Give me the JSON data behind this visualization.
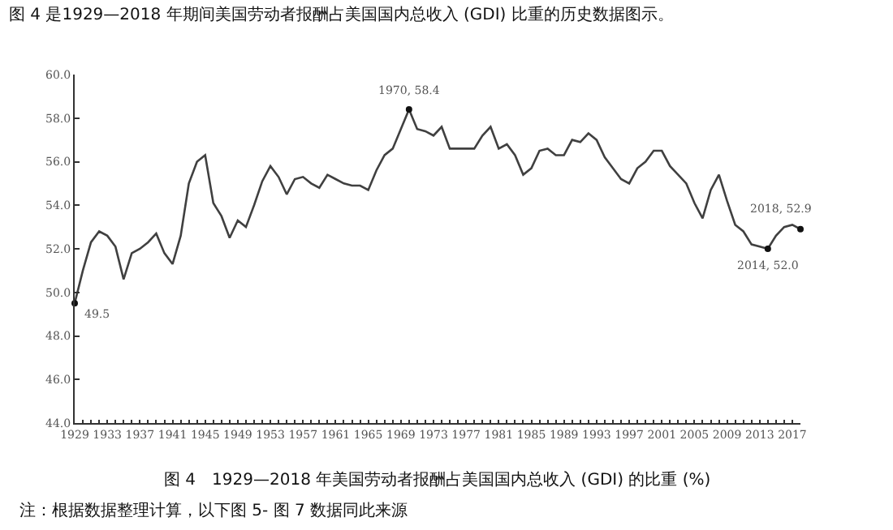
{
  "chart_data": {
    "type": "line",
    "title": "图 4 是1929—2018 年期间美国劳动者报酬占美国国内总收入 (GDI) 比重的历史数据图示。",
    "x": [
      1929,
      1930,
      1931,
      1932,
      1933,
      1934,
      1935,
      1936,
      1937,
      1938,
      1939,
      1940,
      1941,
      1942,
      1943,
      1944,
      1945,
      1946,
      1947,
      1948,
      1949,
      1950,
      1951,
      1952,
      1953,
      1954,
      1955,
      1956,
      1957,
      1958,
      1959,
      1960,
      1961,
      1962,
      1963,
      1964,
      1965,
      1966,
      1967,
      1968,
      1969,
      1970,
      1971,
      1972,
      1973,
      1974,
      1975,
      1976,
      1977,
      1978,
      1979,
      1980,
      1981,
      1982,
      1983,
      1984,
      1985,
      1986,
      1987,
      1988,
      1989,
      1990,
      1991,
      1992,
      1993,
      1994,
      1995,
      1996,
      1997,
      1998,
      1999,
      2000,
      2001,
      2002,
      2003,
      2004,
      2005,
      2006,
      2007,
      2008,
      2009,
      2010,
      2011,
      2012,
      2013,
      2014,
      2015,
      2016,
      2017,
      2018
    ],
    "series": [
      {
        "color": "#404040",
        "values": [
          49.5,
          51.0,
          52.3,
          52.8,
          52.6,
          52.1,
          50.6,
          51.8,
          52.0,
          52.3,
          52.7,
          51.8,
          51.3,
          52.6,
          55.0,
          56.0,
          56.3,
          54.1,
          53.5,
          52.5,
          53.3,
          53.0,
          54.0,
          55.1,
          55.8,
          55.3,
          54.5,
          55.2,
          55.3,
          55.0,
          54.8,
          55.4,
          55.2,
          55.0,
          54.9,
          54.9,
          54.7,
          55.6,
          56.3,
          56.6,
          57.5,
          58.4,
          57.5,
          57.4,
          57.2,
          57.6,
          56.6,
          56.6,
          56.6,
          56.6,
          57.2,
          57.6,
          56.6,
          56.8,
          56.3,
          55.4,
          55.7,
          56.5,
          56.6,
          56.3,
          56.3,
          57.0,
          56.9,
          57.3,
          57.0,
          56.2,
          55.7,
          55.2,
          55.0,
          55.7,
          56.0,
          56.5,
          56.5,
          55.8,
          55.4,
          55.0,
          54.1,
          53.4,
          54.7,
          55.4,
          54.2,
          53.1,
          52.8,
          52.2,
          52.1,
          52.0,
          52.6,
          53.0,
          53.1,
          52.9
        ]
      }
    ],
    "xlim": [
      1929,
      2018
    ],
    "xticks": [
      1929,
      {
        "value": 1930,
        "label": null
      },
      {
        "value": 1931,
        "label": null
      },
      {
        "value": 1932,
        "label": null
      },
      1933,
      {
        "value": 1934,
        "label": null
      },
      {
        "value": 1935,
        "label": null
      },
      {
        "value": 1936,
        "label": null
      },
      1937,
      {
        "value": 1938,
        "label": null
      },
      {
        "value": 1939,
        "label": null
      },
      {
        "value": 1940,
        "label": null
      },
      1941,
      {
        "value": 1942,
        "label": null
      },
      {
        "value": 1943,
        "label": null
      },
      {
        "value": 1944,
        "label": null
      },
      1945,
      {
        "value": 1946,
        "label": null
      },
      {
        "value": 1947,
        "label": null
      },
      {
        "value": 1948,
        "label": null
      },
      1949,
      {
        "value": 1950,
        "label": null
      },
      {
        "value": 1951,
        "label": null
      },
      {
        "value": 1952,
        "label": null
      },
      1953,
      {
        "value": 1954,
        "label": null
      },
      {
        "value": 1955,
        "label": null
      },
      {
        "value": 1956,
        "label": null
      },
      1957,
      {
        "value": 1958,
        "label": null
      },
      {
        "value": 1959,
        "label": null
      },
      {
        "value": 1960,
        "label": null
      },
      1961,
      {
        "value": 1962,
        "label": null
      },
      {
        "value": 1963,
        "label": null
      },
      {
        "value": 1964,
        "label": null
      },
      1965,
      {
        "value": 1966,
        "label": null
      },
      {
        "value": 1967,
        "label": null
      },
      {
        "value": 1968,
        "label": null
      },
      1969,
      {
        "value": 1970,
        "label": null
      },
      {
        "value": 1971,
        "label": null
      },
      {
        "value": 1972,
        "label": null
      },
      1973,
      {
        "value": 1974,
        "label": null
      },
      {
        "value": 1975,
        "label": null
      },
      {
        "value": 1976,
        "label": null
      },
      1977,
      {
        "value": 1978,
        "label": null
      },
      {
        "value": 1979,
        "label": null
      },
      {
        "value": 1980,
        "label": null
      },
      1981,
      {
        "value": 1982,
        "label": null
      },
      {
        "value": 1983,
        "label": null
      },
      {
        "value": 1984,
        "label": null
      },
      1985,
      {
        "value": 1986,
        "label": null
      },
      {
        "value": 1987,
        "label": null
      },
      {
        "value": 1988,
        "label": null
      },
      1989,
      {
        "value": 1990,
        "label": null
      },
      {
        "value": 1991,
        "label": null
      },
      {
        "value": 1992,
        "label": null
      },
      1993,
      {
        "value": 1994,
        "label": null
      },
      {
        "value": 1995,
        "label": null
      },
      {
        "value": 1996,
        "label": null
      },
      1997,
      {
        "value": 1998,
        "label": null
      },
      {
        "value": 1999,
        "label": null
      },
      {
        "value": 2000,
        "label": null
      },
      2001,
      {
        "value": 2002,
        "label": null
      },
      {
        "value": 2003,
        "label": null
      },
      {
        "value": 2004,
        "label": null
      },
      2005,
      {
        "value": 2006,
        "label": null
      },
      {
        "value": 2007,
        "label": null
      },
      {
        "value": 2008,
        "label": null
      },
      2009,
      {
        "value": 2010,
        "label": null
      },
      {
        "value": 2011,
        "label": null
      },
      {
        "value": 2012,
        "label": null
      },
      2013,
      {
        "value": 2014,
        "label": null
      },
      {
        "value": 2015,
        "label": null
      },
      {
        "value": 2016,
        "label": null
      },
      2017
    ],
    "ylim": [
      44,
      60
    ],
    "yticks": [
      {
        "value": 44,
        "label": "44.0"
      },
      {
        "value": 46,
        "label": "46.0"
      },
      {
        "value": 48,
        "label": "48.0"
      },
      {
        "value": 50,
        "label": "50.0"
      },
      {
        "value": 52,
        "label": "52.0"
      },
      {
        "value": 54,
        "label": "54.0"
      },
      {
        "value": 56,
        "label": "56.0"
      },
      {
        "value": 58,
        "label": "58.0"
      },
      {
        "value": 60,
        "label": "60.0"
      }
    ],
    "line_style": "solid",
    "annotations": [
      {
        "text": "49.5",
        "x": 1929,
        "y": 49.5
      },
      {
        "text": "1970, 58.4",
        "x": 1970,
        "y": 58.4
      },
      {
        "text": "2014, 52.0",
        "x": 2014,
        "y": 52.0
      },
      {
        "text": "2018, 52.9",
        "x": 2018,
        "y": 52.9
      },
      "图 4　1929—2018 年美国劳动者报酬占美国国内总收入 (GDI) 的比重 (%)",
      "注：根据数据整理计算，以下图 5- 图 7 数据同此来源"
    ]
  }
}
